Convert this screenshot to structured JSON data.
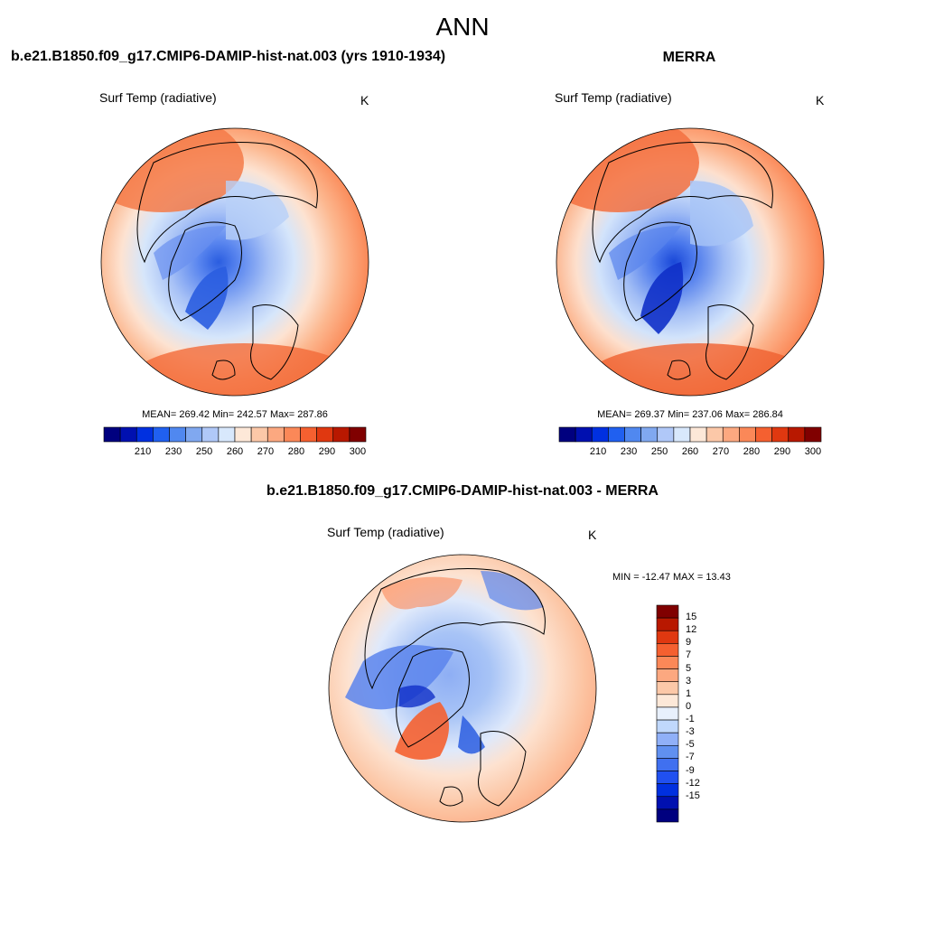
{
  "main_title": "ANN",
  "panels": [
    {
      "title": "b.e21.B1850.f09_g17.CMIP6-DAMIP-hist-nat.003 (yrs 1910-1934)",
      "variable": "Surf Temp (radiative)",
      "units": "K",
      "stats": "MEAN= 269.42  Min= 242.57  Max= 287.86"
    },
    {
      "title": "MERRA",
      "variable": "Surf Temp (radiative)",
      "units": "K",
      "stats": "MEAN= 269.37  Min= 237.06  Max= 286.84"
    },
    {
      "title": "b.e21.B1850.f09_g17.CMIP6-DAMIP-hist-nat.003 - MERRA",
      "variable": "Surf Temp (radiative)",
      "units": "K",
      "stats": "MIN = -12.47 MAX =  13.43"
    }
  ],
  "abs_colorbar": {
    "colors": [
      "#00007f",
      "#0010b0",
      "#0030e0",
      "#2060f0",
      "#5088f0",
      "#80a8f0",
      "#b0c8f8",
      "#d8e8fc",
      "#fde8d8",
      "#fcc8a8",
      "#fca880",
      "#fb8858",
      "#f56030",
      "#e03810",
      "#b81800",
      "#800000"
    ],
    "tick_labels": [
      "210",
      "230",
      "250",
      "260",
      "270",
      "280",
      "290",
      "300"
    ]
  },
  "diff_colorbar": {
    "colors": [
      "#00007f",
      "#0010b0",
      "#0030e0",
      "#2050f0",
      "#4070f0",
      "#6090f0",
      "#90b0f8",
      "#c0d8fc",
      "#e8f0fc",
      "#fde8d8",
      "#fcc8a8",
      "#fca880",
      "#fb8858",
      "#f56030",
      "#e03810",
      "#b81800",
      "#800000"
    ],
    "tick_labels": [
      "15",
      "12",
      "9",
      "7",
      "5",
      "3",
      "1",
      "0",
      "-1",
      "-3",
      "-5",
      "-7",
      "-9",
      "-12",
      "-15"
    ]
  }
}
